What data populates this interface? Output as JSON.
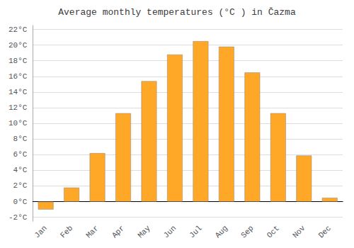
{
  "chart_data": {
    "type": "bar",
    "title": "Average monthly temperatures (°C ) in Čazma",
    "categories": [
      "Jan",
      "Feb",
      "Mar",
      "Apr",
      "May",
      "Jun",
      "Jul",
      "Aug",
      "Sep",
      "Oct",
      "Nov",
      "Dec"
    ],
    "values": [
      -1.0,
      1.8,
      6.2,
      11.3,
      15.4,
      18.8,
      20.5,
      19.8,
      16.5,
      11.3,
      5.9,
      0.5
    ],
    "color": "#FFA726",
    "ylim": [
      -2.5,
      22.5
    ],
    "yticks": [
      {
        "value": -2,
        "label": "-2°C"
      },
      {
        "value": 0,
        "label": "0°C"
      },
      {
        "value": 2,
        "label": "2°C"
      },
      {
        "value": 4,
        "label": "4°C"
      },
      {
        "value": 6,
        "label": "6°C"
      },
      {
        "value": 8,
        "label": "8°C"
      },
      {
        "value": 10,
        "label": "10°C"
      },
      {
        "value": 12,
        "label": "12°C"
      },
      {
        "value": 14,
        "label": "14°C"
      },
      {
        "value": 16,
        "label": "16°C"
      },
      {
        "value": 18,
        "label": "18°C"
      },
      {
        "value": 20,
        "label": "20°C"
      },
      {
        "value": 22,
        "label": "22°C"
      }
    ],
    "grid": true
  }
}
